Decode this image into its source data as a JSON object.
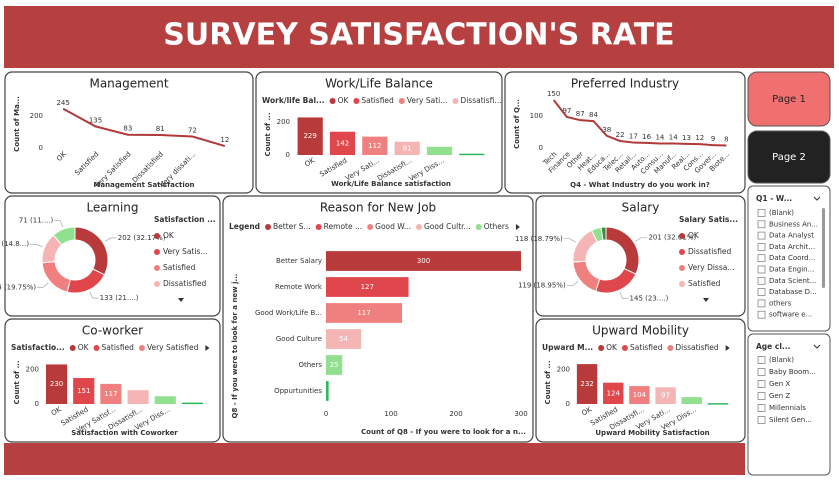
{
  "header": {
    "title": "SURVEY SATISFACTION'S RATE"
  },
  "buttons": [
    "Page 1",
    "Page 2"
  ],
  "slicers": [
    {
      "title": "Q1 - W...",
      "items": [
        "(Blank)",
        "Business An...",
        "Data Analyst",
        "Data Archit...",
        "Data Coord...",
        "Data Engin...",
        "Data Scient...",
        "Database D...",
        "others",
        "software e..."
      ]
    },
    {
      "title": "Age cl...",
      "items": [
        "(Blank)",
        "Baby Boom...",
        "Gen X",
        "Gen Z",
        "Millennials",
        "Silent Gen..."
      ]
    }
  ],
  "chart_data": [
    {
      "type": "line",
      "title": "Management",
      "categories": [
        "OK",
        "Satisfied",
        "Very Satisfied",
        "Dissatisfied",
        "Very dissati...",
        null
      ],
      "values": [
        245,
        135,
        83,
        81,
        72,
        12
      ],
      "color": "#b03a3a",
      "ylim": [
        0,
        300
      ],
      "yticks": [
        0,
        200
      ],
      "x_label": "Management Satisfaction",
      "y_label": "Count of Ma..."
    },
    {
      "type": "bar",
      "title": "Work/Life Balance",
      "legend_title": "Work/life Bal...",
      "legend": [
        {
          "name": "OK",
          "color": "#b83a3a"
        },
        {
          "name": "Satisfied",
          "color": "#e0474c"
        },
        {
          "name": "Very Sati...",
          "color": "#f08080"
        },
        {
          "name": "Dissatisfi...",
          "color": "#f5b5b5"
        }
      ],
      "categories": [
        "OK",
        "Satisfied",
        "Very Sati...",
        "Dissatisfi...",
        "Very Diss...",
        null
      ],
      "values": [
        229,
        142,
        112,
        81,
        50,
        8
      ],
      "value_labels": [
        "229",
        "142",
        "112",
        "81",
        null,
        null
      ],
      "colors": [
        "#b83a3a",
        "#e0474c",
        "#f08080",
        "#f5b5b5",
        "#90e08f",
        "#2eb85c"
      ],
      "ylim": [
        0,
        250
      ],
      "yticks": [
        0,
        200
      ],
      "x_label": "Work/Life Balance satisfaction",
      "y_label": "Count of ..."
    },
    {
      "type": "line",
      "title": "Preferred Industry",
      "categories": [
        "Tech",
        "Finance",
        "Other",
        "Heat...",
        "Educa...",
        "Telec...",
        "Retail...",
        "Auto...",
        "Consu...",
        "Manuf...",
        "Real...",
        "Cons...",
        "Gover...",
        "Biote..."
      ],
      "values": [
        150,
        97,
        87,
        84,
        38,
        22,
        17,
        16,
        14,
        14,
        13,
        12,
        9,
        8
      ],
      "color": "#b03a3a",
      "ylim": [
        0,
        150
      ],
      "yticks": [
        0,
        100
      ],
      "x_label": "Q4 - What Industry do you work in?",
      "y_label": "Count of Q..."
    },
    {
      "type": "donut",
      "title": "Learning",
      "legend_title": "Satisfaction ...",
      "legend": [
        {
          "name": "OK",
          "color": "#b83a3a"
        },
        {
          "name": "Very Satis...",
          "color": "#e0474c"
        },
        {
          "name": "Satisfied",
          "color": "#f08080"
        },
        {
          "name": "Dissatisfied",
          "color": "#f5b5b5"
        }
      ],
      "values": [
        202,
        133,
        124,
        93,
        71
      ],
      "value_labels": [
        "202 (32.17%)",
        "133 (21....)",
        "124 (19.75%)",
        "93 (14.8...)",
        "71 (11....)"
      ],
      "colors": [
        "#b83a3a",
        "#e0474c",
        "#f08080",
        "#f5b5b5",
        "#90e08f"
      ]
    },
    {
      "type": "hbar",
      "title": "Reason for New Job",
      "legend_title": "Legend",
      "legend": [
        {
          "name": "Better S...",
          "color": "#b83a3a"
        },
        {
          "name": "Remote ...",
          "color": "#e0474c"
        },
        {
          "name": "Good W...",
          "color": "#f08080"
        },
        {
          "name": "Good Cultr...",
          "color": "#f5b5b5"
        },
        {
          "name": "Others",
          "color": "#90e08f"
        }
      ],
      "categories": [
        "Better Salary",
        "Remote Work",
        "Good Work/Life B...",
        "Good Culture",
        "Others",
        "Oppurtunities"
      ],
      "values": [
        300,
        127,
        117,
        54,
        25,
        4
      ],
      "value_labels": [
        "300",
        "127",
        "117",
        "54",
        "25",
        null
      ],
      "colors": [
        "#b83a3a",
        "#e0474c",
        "#f08080",
        "#f5b5b5",
        "#90e08f",
        "#2eb85c"
      ],
      "xlim": [
        0,
        300
      ],
      "xticks": [
        0,
        100,
        200,
        300
      ],
      "x_label": "Count of Q8 - If you were to look for a n...",
      "y_label": "Q8 - If you were to look for a new j..."
    },
    {
      "type": "donut",
      "title": "Salary",
      "legend_title": "Salary Satis...",
      "legend": [
        {
          "name": "OK",
          "color": "#b83a3a"
        },
        {
          "name": "Dissatisfied",
          "color": "#e0474c"
        },
        {
          "name": "Very Dissa...",
          "color": "#f08080"
        },
        {
          "name": "Satisfied",
          "color": "#f5b5b5"
        }
      ],
      "values": [
        201,
        145,
        119,
        118,
        30,
        15
      ],
      "value_labels": [
        "201 (32.01%)",
        "145 (23....)",
        "119 (18.95%)",
        "118 (18.79%)",
        null,
        null
      ],
      "colors": [
        "#b83a3a",
        "#e0474c",
        "#f08080",
        "#f5b5b5",
        "#90e08f",
        "#3a8a3a"
      ]
    },
    {
      "type": "bar",
      "title": "Co-worker",
      "legend_title": "Satisfactio...",
      "legend": [
        {
          "name": "OK",
          "color": "#b83a3a"
        },
        {
          "name": "Satisfied",
          "color": "#e0474c"
        },
        {
          "name": "Very Satisfied",
          "color": "#f08080"
        }
      ],
      "categories": [
        "OK",
        "Satisfied",
        "Very Satisf...",
        "Dissatisfi...",
        "Very Diss...",
        null
      ],
      "values": [
        230,
        151,
        117,
        80,
        45,
        8
      ],
      "value_labels": [
        "230",
        "151",
        "117",
        null,
        null,
        null
      ],
      "colors": [
        "#b83a3a",
        "#e0474c",
        "#f08080",
        "#f5b5b5",
        "#90e08f",
        "#2eb85c"
      ],
      "ylim": [
        0,
        250
      ],
      "yticks": [
        0,
        200
      ],
      "x_label": "Satisfaction with Coworker",
      "y_label": "Count of ..."
    },
    {
      "type": "bar",
      "title": "Upward Mobility",
      "legend_title": "Upward M...",
      "legend": [
        {
          "name": "OK",
          "color": "#b83a3a"
        },
        {
          "name": "Satisfied",
          "color": "#e0474c"
        },
        {
          "name": "Dissatisfied",
          "color": "#f08080"
        }
      ],
      "categories": [
        "OK",
        "Satisfied",
        "Dissatisfi...",
        "Very Sati...",
        "Very Diss...",
        null
      ],
      "values": [
        232,
        124,
        104,
        97,
        40,
        5
      ],
      "value_labels": [
        "232",
        "124",
        "104",
        "97",
        null,
        null
      ],
      "colors": [
        "#b83a3a",
        "#e0474c",
        "#f08080",
        "#f5b5b5",
        "#90e08f",
        "#2eb85c"
      ],
      "ylim": [
        0,
        250
      ],
      "yticks": [
        0,
        200
      ],
      "x_label": "Upward Mobility Satisfaction",
      "y_label": "Count of ..."
    }
  ]
}
